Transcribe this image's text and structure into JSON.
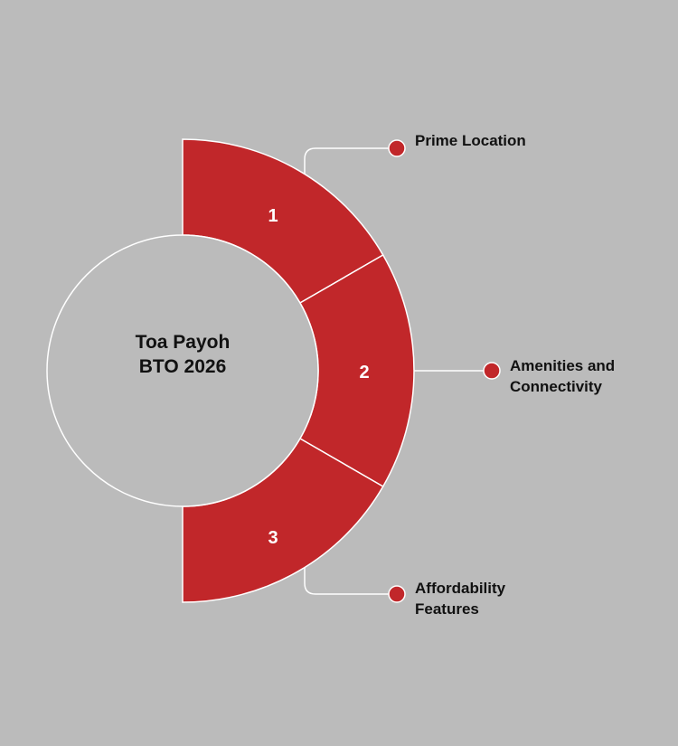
{
  "center_title": [
    "Toa Payoh",
    "BTO 2026"
  ],
  "colors": {
    "segment": "#c1272a",
    "background": "#bbbbbb",
    "stroke": "#ffffff"
  },
  "segments": [
    {
      "number": "1",
      "label": "Prime Location"
    },
    {
      "number": "2",
      "label": "Amenities and Connectivity",
      "label_lines": [
        "Amenities and",
        "Connectivity"
      ]
    },
    {
      "number": "3",
      "label": "Affordability Features",
      "label_lines": [
        "Affordability",
        "Features"
      ]
    }
  ]
}
